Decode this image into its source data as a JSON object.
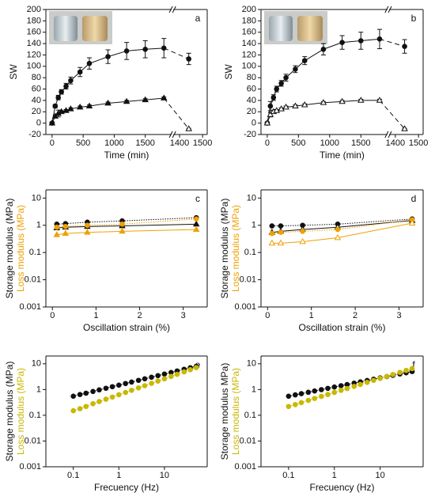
{
  "chart_data": [
    {
      "type": "line",
      "panel": "a",
      "ylabel": "SW",
      "xlabel": "Time (min)",
      "xsegments": [
        {
          "xlim": [
            -20,
            380
          ],
          "xticks": [
            0,
            {
              "value": 100,
              "label": "500"
            },
            {
              "value": 200,
              "label": "1000"
            },
            {
              "value": 300,
              "label": "1500"
            }
          ]
        },
        {
          "xlim": [
            1380,
            1520
          ],
          "xticks": [
            1400,
            1500
          ]
        }
      ],
      "ylim": [
        -20,
        200
      ],
      "yticks": [
        -20,
        0,
        20,
        40,
        60,
        80,
        100,
        120,
        140,
        160,
        180,
        200
      ],
      "x": [
        0,
        10,
        20,
        30,
        45,
        60,
        90,
        120,
        180,
        240,
        300,
        360,
        1440
      ],
      "dashed_last_segment": true,
      "series": [
        {
          "color": "#111111",
          "marker": "circle",
          "filled": true,
          "values": [
            0,
            30,
            45,
            55,
            65,
            75,
            90,
            105,
            117,
            127,
            130,
            132,
            113
          ],
          "errors": [
            2,
            3,
            4,
            4,
            5,
            6,
            8,
            10,
            12,
            15,
            15,
            17,
            10
          ]
        },
        {
          "color": "#111111",
          "marker": "triangle",
          "filled": true,
          "values": [
            0,
            12,
            17,
            20,
            22,
            25,
            28,
            30,
            35,
            38,
            41,
            44,
            -10
          ],
          "errors": [
            1,
            2,
            6,
            2,
            2,
            2,
            2,
            2,
            2,
            2,
            2,
            2,
            1
          ]
        }
      ]
    },
    {
      "type": "line",
      "panel": "b",
      "ylabel": "SW",
      "xlabel": "Time (min)",
      "xsegments": [
        {
          "xlim": [
            -20,
            380
          ],
          "xticks": [
            0,
            {
              "value": 100,
              "label": "500"
            },
            {
              "value": 200,
              "label": "1000"
            },
            {
              "value": 300,
              "label": "1500"
            }
          ]
        },
        {
          "xlim": [
            1380,
            1520
          ],
          "xticks": [
            1400,
            1500
          ]
        }
      ],
      "ylim": [
        -20,
        200
      ],
      "yticks": [
        -20,
        0,
        20,
        40,
        60,
        80,
        100,
        120,
        140,
        160,
        180,
        200
      ],
      "x": [
        0,
        10,
        20,
        30,
        45,
        60,
        90,
        120,
        180,
        240,
        300,
        360,
        1440
      ],
      "dashed_last_segment": true,
      "series": [
        {
          "color": "#111111",
          "marker": "circle",
          "filled": true,
          "values": [
            0,
            30,
            45,
            60,
            70,
            80,
            95,
            110,
            130,
            142,
            145,
            148,
            135
          ],
          "errors": [
            2,
            8,
            5,
            5,
            5,
            6,
            6,
            7,
            10,
            12,
            15,
            17,
            12
          ]
        },
        {
          "color": "#111111",
          "marker": "triangle",
          "filled": false,
          "values": [
            0,
            15,
            20,
            22,
            25,
            28,
            30,
            32,
            36,
            38,
            40,
            40,
            -10
          ],
          "errors": [
            1,
            4,
            3,
            2,
            2,
            2,
            2,
            2,
            2,
            2,
            2,
            2,
            1
          ]
        }
      ]
    },
    {
      "type": "line",
      "panel": "c",
      "ylabel": "Storage modulus (MPa)",
      "ylabel2": "Loss modulus (MPa)",
      "ylabel2_color": "#f0a000",
      "xlabel": "Oscillation strain (%)",
      "xlim": [
        -0.15,
        3.55
      ],
      "xticks": [
        0,
        1,
        2,
        3
      ],
      "ylog": true,
      "ylim": [
        0.001,
        20
      ],
      "yticks": [
        0.001,
        0.01,
        0.1,
        1,
        10
      ],
      "x": [
        0.1,
        0.3,
        0.8,
        1.6,
        3.3
      ],
      "series": [
        {
          "color": "#111111",
          "marker": "circle",
          "filled": true,
          "dash": true,
          "values": [
            1.1,
            1.15,
            1.3,
            1.45,
            1.9
          ]
        },
        {
          "color": "#111111",
          "marker": "triangle",
          "filled": true,
          "dash": false,
          "values": [
            0.8,
            0.85,
            0.9,
            0.95,
            1.1
          ]
        },
        {
          "color": "#f0a000",
          "marker": "circle",
          "filled": true,
          "dash": true,
          "values": [
            0.85,
            0.9,
            1.0,
            1.1,
            1.7
          ]
        },
        {
          "color": "#f0a000",
          "marker": "triangle",
          "filled": true,
          "dash": false,
          "values": [
            0.45,
            0.5,
            0.55,
            0.6,
            0.7
          ]
        }
      ]
    },
    {
      "type": "line",
      "panel": "d",
      "ylabel": "Storage modulus (MPa)",
      "ylabel2": "Loss modulus (MPa)",
      "ylabel2_color": "#f0a000",
      "xlabel": "Oscillation strain (%)",
      "xlim": [
        -0.15,
        3.55
      ],
      "xticks": [
        0,
        1,
        2,
        3
      ],
      "ylog": true,
      "ylim": [
        0.001,
        20
      ],
      "yticks": [
        0.001,
        0.01,
        0.1,
        1,
        10
      ],
      "x": [
        0.1,
        0.3,
        0.8,
        1.6,
        3.3
      ],
      "series": [
        {
          "color": "#111111",
          "marker": "circle",
          "filled": true,
          "dash": true,
          "values": [
            0.95,
            0.95,
            1.0,
            1.1,
            1.7
          ]
        },
        {
          "color": "#111111",
          "marker": "triangle",
          "filled": false,
          "dash": false,
          "values": [
            0.55,
            0.6,
            0.7,
            0.85,
            1.5
          ]
        },
        {
          "color": "#f0a000",
          "marker": "circle",
          "filled": true,
          "dash": true,
          "values": [
            0.5,
            0.55,
            0.6,
            0.7,
            1.6
          ]
        },
        {
          "color": "#f0a000",
          "marker": "triangle",
          "filled": false,
          "dash": false,
          "values": [
            0.22,
            0.22,
            0.25,
            0.35,
            1.2
          ]
        }
      ]
    },
    {
      "type": "line",
      "panel": "e",
      "ylabel": "Storage modulus (MPa)",
      "ylabel2": "Loss modulus (MPa)",
      "ylabel2_color": "#c8b800",
      "xlabel": "Frecuency (Hz)",
      "xlog": true,
      "xlim": [
        0.025,
        87
      ],
      "xticks": [
        0.1,
        1,
        10
      ],
      "ylog": true,
      "ylim": [
        0.001,
        20
      ],
      "yticks": [
        0.001,
        0.01,
        0.1,
        1,
        10
      ],
      "x": [
        0.1,
        0.14,
        0.19,
        0.27,
        0.37,
        0.52,
        0.72,
        1,
        1.4,
        1.9,
        2.7,
        3.7,
        5.2,
        7.2,
        10,
        14,
        19,
        27,
        37,
        50
      ],
      "series": [
        {
          "color": "#111111",
          "marker": "circle",
          "filled": true,
          "dash": true,
          "values": [
            0.55,
            0.64,
            0.72,
            0.84,
            0.97,
            1.12,
            1.29,
            1.48,
            1.71,
            1.95,
            2.27,
            2.6,
            3.0,
            3.46,
            3.98,
            4.6,
            5.26,
            6.12,
            7.0,
            7.96
          ]
        },
        {
          "color": "#c8b800",
          "marker": "circle",
          "filled": true,
          "dash": true,
          "values": [
            0.15,
            0.18,
            0.22,
            0.28,
            0.34,
            0.42,
            0.51,
            0.63,
            0.77,
            0.93,
            1.16,
            1.41,
            1.74,
            2.13,
            2.61,
            3.21,
            3.89,
            4.83,
            5.87,
            7.07
          ]
        }
      ]
    },
    {
      "type": "line",
      "panel": "f",
      "ylabel": "Storage modulus MPa)",
      "ylabel2": "Loss modulus (MPa)",
      "ylabel2_color": "#c8b800",
      "xlabel": "Frecuency (Hz)",
      "xlog": true,
      "xlim": [
        0.025,
        87
      ],
      "xticks": [
        0.1,
        1,
        10
      ],
      "ylog": true,
      "ylim": [
        0.001,
        20
      ],
      "yticks": [
        0.001,
        0.01,
        0.1,
        1,
        10
      ],
      "x": [
        0.1,
        0.14,
        0.19,
        0.27,
        0.37,
        0.52,
        0.72,
        1,
        1.4,
        1.9,
        2.7,
        3.7,
        5.2,
        7.2,
        10,
        14,
        19,
        27,
        37,
        50
      ],
      "series": [
        {
          "color": "#111111",
          "marker": "circle",
          "filled": true,
          "dash": true,
          "values": [
            0.55,
            0.62,
            0.69,
            0.78,
            0.88,
            0.99,
            1.11,
            1.25,
            1.4,
            1.56,
            1.77,
            1.98,
            2.24,
            2.51,
            2.82,
            3.18,
            3.54,
            4.02,
            4.48,
            4.99
          ]
        },
        {
          "color": "#c8b800",
          "marker": "circle",
          "filled": true,
          "dash": true,
          "values": [
            0.22,
            0.26,
            0.31,
            0.38,
            0.45,
            0.54,
            0.64,
            0.77,
            0.93,
            1.09,
            1.32,
            1.57,
            1.89,
            2.27,
            2.71,
            3.23,
            3.83,
            4.64,
            5.52,
            6.49
          ]
        }
      ]
    }
  ]
}
